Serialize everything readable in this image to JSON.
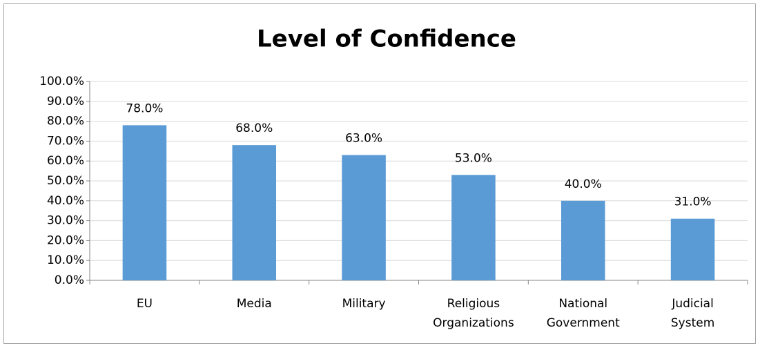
{
  "chart_data": {
    "type": "bar",
    "title": "Level of Confidence",
    "categories": [
      "EU",
      "Media",
      "Military",
      "Religious Organizations",
      "National Government",
      "Judicial System"
    ],
    "values": [
      78,
      68,
      63,
      53,
      40,
      31
    ],
    "value_labels": [
      "78.0%",
      "68.0%",
      "63.0%",
      "53.0%",
      "40.0%",
      "31.0%"
    ],
    "color": "#5b9bd5",
    "ylim": [
      0,
      100
    ],
    "yticks": [
      {
        "value": 0,
        "label": "0.0%"
      },
      {
        "value": 10,
        "label": "10.0%"
      },
      {
        "value": 20,
        "label": "20.0%"
      },
      {
        "value": 30,
        "label": "30.0%"
      },
      {
        "value": 40,
        "label": "40.0%"
      },
      {
        "value": 50,
        "label": "50.0%"
      },
      {
        "value": 60,
        "label": "60.0%"
      },
      {
        "value": 70,
        "label": "70.0%"
      },
      {
        "value": 80,
        "label": "80.0%"
      },
      {
        "value": 90,
        "label": "90.0%"
      },
      {
        "value": 100,
        "label": "100.0%"
      }
    ],
    "grid": true
  }
}
